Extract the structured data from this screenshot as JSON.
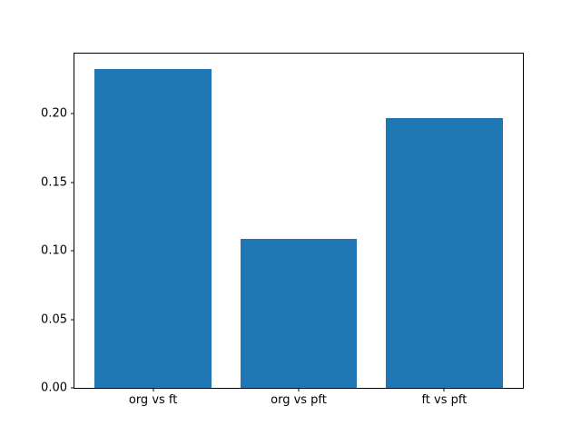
{
  "figure": {
    "background_color": "#ffffff",
    "spine_color": "#000000",
    "bar_color": "#1f77b4"
  },
  "chart_data": {
    "type": "bar",
    "title": "",
    "xlabel": "",
    "ylabel": "",
    "categories": [
      "org vs ft",
      "org vs pft",
      "ft vs pft"
    ],
    "values": [
      0.233,
      0.109,
      0.197
    ],
    "bar_width_units": 0.8,
    "xlim": [
      -0.54,
      2.54
    ],
    "ylim": [
      0,
      0.244
    ],
    "yticks": [
      0.0,
      0.05,
      0.1,
      0.15,
      0.2
    ],
    "ytick_labels": [
      "0.00",
      "0.05",
      "0.10",
      "0.15",
      "0.20"
    ],
    "grid": false,
    "legend": null
  }
}
